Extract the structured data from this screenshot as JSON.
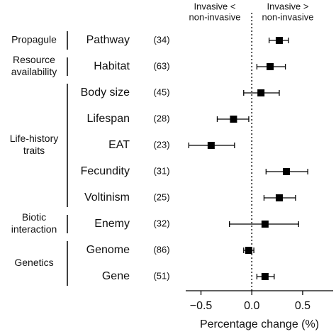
{
  "chart_data": {
    "type": "forest",
    "header_left": [
      "Invasive <",
      "non-invasive"
    ],
    "header_right": [
      "Invasive >",
      "non-invasive"
    ],
    "groups": [
      [
        "Propagule"
      ],
      [
        "Resource",
        "availability"
      ],
      [
        "Life-history",
        "traits"
      ],
      [
        "Biotic",
        "interaction"
      ],
      [
        "Genetics"
      ]
    ],
    "categories": [
      "Pathway",
      "Habitat",
      "Body size",
      "Lifespan",
      "EAT",
      "Fecundity",
      "Voltinism",
      "Enemy",
      "Genome",
      "Gene"
    ],
    "n_labels": [
      "(34)",
      "(63)",
      "(45)",
      "(28)",
      "(23)",
      "(31)",
      "(25)",
      "(32)",
      "(86)",
      "(51)"
    ],
    "values": [
      0.27,
      0.18,
      0.09,
      -0.18,
      -0.4,
      0.34,
      0.27,
      0.13,
      -0.03,
      0.13
    ],
    "lower": [
      0.17,
      0.05,
      -0.08,
      -0.34,
      -0.62,
      0.14,
      0.12,
      -0.22,
      -0.08,
      0.05
    ],
    "upper": [
      0.36,
      0.33,
      0.27,
      -0.03,
      -0.17,
      0.55,
      0.43,
      0.46,
      0.02,
      0.22
    ],
    "color": "#000000",
    "xlim": [
      -0.65,
      0.8
    ],
    "xticks": [
      {
        "value": -0.5,
        "label": "−0.5"
      },
      {
        "value": 0,
        "label": "0.0"
      },
      0.5
    ],
    "xlabel": "Percentage change (%)",
    "reference_line": 0
  }
}
